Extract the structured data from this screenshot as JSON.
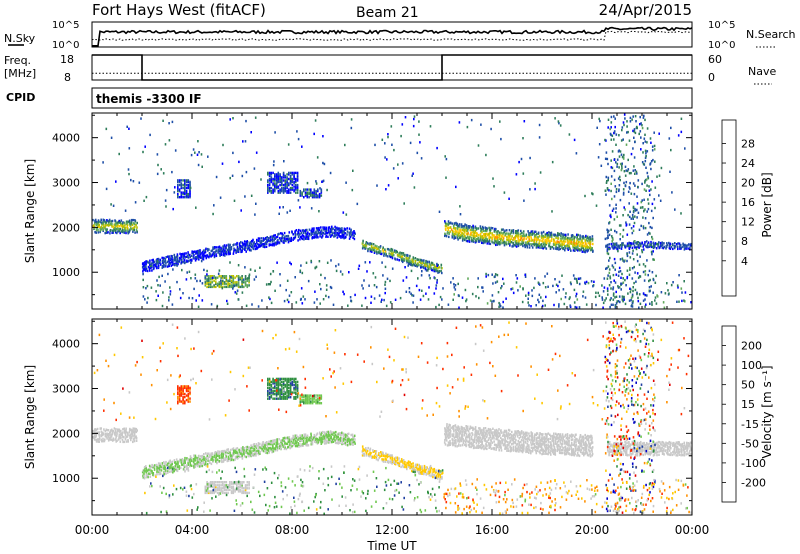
{
  "header": {
    "station": "Fort Hays West (fitACF)",
    "beam": "Beam 21",
    "date": "24/Apr/2015"
  },
  "panels": {
    "nsky": {
      "left_label": "N.Sky",
      "left_ticks": [
        "10^5",
        "10^0"
      ],
      "right_ticks": [
        "10^5",
        "10^0"
      ],
      "right_label": "N.Search",
      "nsky_level": 0.6,
      "search_level": 0.3
    },
    "freq": {
      "left_label_line1": "Freq.",
      "left_label_line2": "[MHz]",
      "left_ticks": [
        "18",
        "8"
      ],
      "right_ticks": [
        "60",
        "0"
      ],
      "right_label": "Nave",
      "segments": [
        {
          "start_hour": 0,
          "end_hour": 2,
          "freq_mhz": 18
        },
        {
          "start_hour": 2,
          "end_hour": 14,
          "freq_mhz": 8
        },
        {
          "start_hour": 14,
          "end_hour": 24,
          "freq_mhz": 18
        }
      ],
      "freq_range": [
        8,
        18
      ],
      "nave_level": 0.27
    },
    "cpid": {
      "label": "CPID",
      "value": "themis -3300 IF"
    }
  },
  "colors": {
    "power": [
      "#0000ff",
      "#1f4fa8",
      "#2e7d5a",
      "#5fa85a",
      "#b8c000",
      "#ffc800",
      "#ff8c00",
      "#ff4000",
      "#ff0000"
    ],
    "velocity": [
      "#0000c8",
      "#1f3fa0",
      "#2f8f40",
      "#70c850",
      "#c8c8c8",
      "#ffc800",
      "#ff9000",
      "#ff3000",
      "#e00000"
    ]
  },
  "chart_data": [
    {
      "type": "heatmap",
      "name": "power",
      "xlabel": "",
      "ylabel": "Slant Range [km]",
      "xlim": [
        0,
        24
      ],
      "ylim": [
        180,
        4550
      ],
      "y_ticks": [
        "1000",
        "2000",
        "3000",
        "4000"
      ],
      "colorbar_label": "Power [dB]",
      "colorbar_ticks": [
        "28",
        "24",
        "20",
        "16",
        "12",
        "8",
        "4"
      ],
      "clim": [
        0,
        30
      ],
      "features": [
        {
          "type": "band",
          "x": [
            0.0,
            1.8
          ],
          "y": [
            2050,
            2050
          ],
          "width_km": 280,
          "core": 17,
          "edge": 4
        },
        {
          "type": "band",
          "x": [
            2.0,
            4.0,
            6.0,
            8.0,
            9.5,
            10.5
          ],
          "y": [
            1150,
            1400,
            1600,
            1850,
            1950,
            1880
          ],
          "width_km": 230,
          "core": 4,
          "edge": 2
        },
        {
          "type": "band",
          "x": [
            10.8,
            12.0,
            13.0,
            14.0
          ],
          "y": [
            1650,
            1450,
            1250,
            1100
          ],
          "width_km": 200,
          "core": 16,
          "edge": 4
        },
        {
          "type": "band",
          "x": [
            14.1,
            15.0,
            16.5,
            18.0,
            20.0
          ],
          "y": [
            2000,
            1900,
            1800,
            1750,
            1650
          ],
          "width_km": 350,
          "core": 20,
          "edge": 4
        },
        {
          "type": "band",
          "x": [
            20.6,
            22.0,
            24.0
          ],
          "y": [
            1600,
            1650,
            1600
          ],
          "width_km": 120,
          "core": 6,
          "edge": 3
        },
        {
          "type": "patch",
          "x": [
            4.5,
            6.3
          ],
          "y": [
            700,
            950
          ],
          "value": 12
        },
        {
          "type": "patch",
          "x": [
            7.0,
            8.2
          ],
          "y": [
            2800,
            3250
          ],
          "value": 4
        },
        {
          "type": "patch",
          "x": [
            8.3,
            9.2
          ],
          "y": [
            2700,
            2900
          ],
          "value": 4
        },
        {
          "type": "patch",
          "x": [
            3.4,
            3.9
          ],
          "y": [
            2700,
            3100
          ],
          "value": 4
        },
        {
          "type": "scatter",
          "x": [
            20.5,
            22.5
          ],
          "y": [
            200,
            4550
          ],
          "value": 5
        },
        {
          "type": "scatter",
          "x": [
            2.0,
            14.0
          ],
          "y": [
            200,
            1300
          ],
          "value": 4
        },
        {
          "type": "scatter",
          "x": [
            14.0,
            24.0
          ],
          "y": [
            200,
            1000
          ],
          "value": 5
        },
        {
          "type": "scatter",
          "x": [
            0.0,
            24.0
          ],
          "y": [
            2300,
            4500
          ],
          "value": 4
        }
      ]
    },
    {
      "type": "heatmap",
      "name": "velocity",
      "xlabel": "Time UT",
      "ylabel": "Slant Range [km]",
      "xlim": [
        0,
        24
      ],
      "ylim": [
        180,
        4550
      ],
      "x_ticks": [
        "00:00",
        "04:00",
        "08:00",
        "12:00",
        "16:00",
        "20:00",
        "00:00"
      ],
      "y_ticks": [
        "1000",
        "2000",
        "3000",
        "4000"
      ],
      "colorbar_label": "Velocity [m s⁻¹]",
      "colorbar_ticks": [
        "200",
        "100",
        "50",
        "15",
        "-15",
        "-50",
        "-100",
        "-200"
      ],
      "clim": [
        -250,
        250
      ],
      "features": [
        {
          "type": "band",
          "x": [
            0.0,
            1.8
          ],
          "y": [
            2000,
            2000
          ],
          "width_km": 300,
          "core": 0,
          "edge": 0
        },
        {
          "type": "band",
          "x": [
            2.0,
            4.0,
            6.0,
            8.0,
            9.5,
            10.5
          ],
          "y": [
            1150,
            1400,
            1600,
            1850,
            1950,
            1880
          ],
          "width_km": 250,
          "core": -40,
          "edge": -20
        },
        {
          "type": "band",
          "x": [
            10.8,
            12.0,
            13.0,
            14.0
          ],
          "y": [
            1650,
            1450,
            1250,
            1100
          ],
          "width_km": 200,
          "core": 40,
          "edge": 20
        },
        {
          "type": "band",
          "x": [
            14.1,
            16.0,
            18.0,
            20.0
          ],
          "y": [
            2000,
            1900,
            1800,
            1750
          ],
          "width_km": 450,
          "core": 0,
          "edge": 0
        },
        {
          "type": "band",
          "x": [
            20.6,
            24.0
          ],
          "y": [
            1700,
            1700
          ],
          "width_km": 300,
          "core": 0,
          "edge": 0
        },
        {
          "type": "patch",
          "x": [
            4.5,
            6.3
          ],
          "y": [
            700,
            950
          ],
          "value": 0
        },
        {
          "type": "patch",
          "x": [
            7.0,
            8.2
          ],
          "y": [
            2800,
            3250
          ],
          "value": -120
        },
        {
          "type": "patch",
          "x": [
            8.3,
            9.2
          ],
          "y": [
            2700,
            2900
          ],
          "value": -60
        },
        {
          "type": "patch",
          "x": [
            3.4,
            3.9
          ],
          "y": [
            2700,
            3100
          ],
          "value": 150
        },
        {
          "type": "scatter",
          "x": [
            20.5,
            22.5
          ],
          "y": [
            200,
            4550
          ],
          "value": -150
        },
        {
          "type": "scatter",
          "x": [
            2.0,
            14.0
          ],
          "y": [
            200,
            1300
          ],
          "value": -60
        },
        {
          "type": "scatter",
          "x": [
            14.0,
            24.0
          ],
          "y": [
            200,
            1000
          ],
          "value": 60
        },
        {
          "type": "scatter",
          "x": [
            0.0,
            24.0
          ],
          "y": [
            2300,
            4500
          ],
          "value": 100
        }
      ]
    }
  ]
}
